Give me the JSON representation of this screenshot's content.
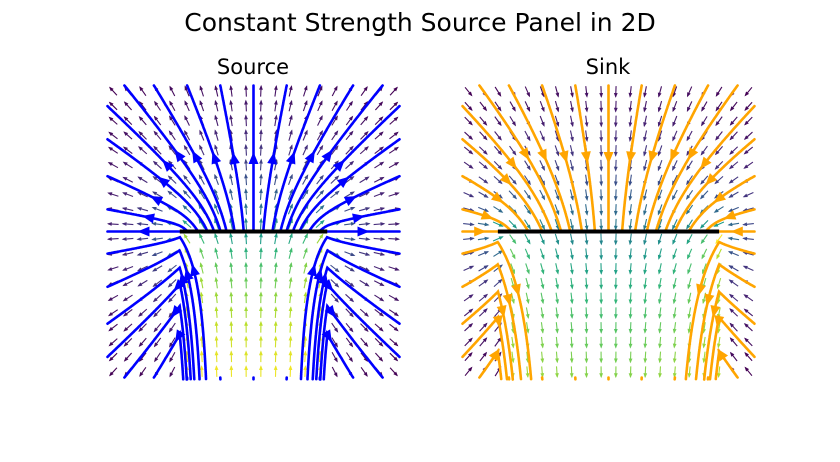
{
  "suptitle": "Constant Strength Source Panel in 2D",
  "chart_data": [
    {
      "type": "streamplot",
      "title": "Source",
      "xlabel": "",
      "ylabel": "",
      "axes_visible": false,
      "xlim": [
        -2,
        2
      ],
      "ylim": [
        -2,
        2
      ],
      "panel": {
        "x_start": -1,
        "x_end": 1,
        "y": 0,
        "color": "#000000"
      },
      "strength": 1,
      "streamline_color": "#0000ff",
      "quiver_colormap": "viridis",
      "quiver_grid": {
        "nx": 20,
        "ny": 20
      }
    },
    {
      "type": "streamplot",
      "title": "Sink",
      "xlabel": "",
      "ylabel": "",
      "axes_visible": false,
      "xlim": [
        -2,
        2
      ],
      "ylim": [
        -2,
        2
      ],
      "panel": {
        "x_start": -1.5,
        "x_end": 1.5,
        "y": 0,
        "color": "#000000"
      },
      "strength": -1,
      "streamline_color": "#ffa500",
      "quiver_colormap": "viridis",
      "quiver_grid": {
        "nx": 20,
        "ny": 20
      }
    }
  ]
}
